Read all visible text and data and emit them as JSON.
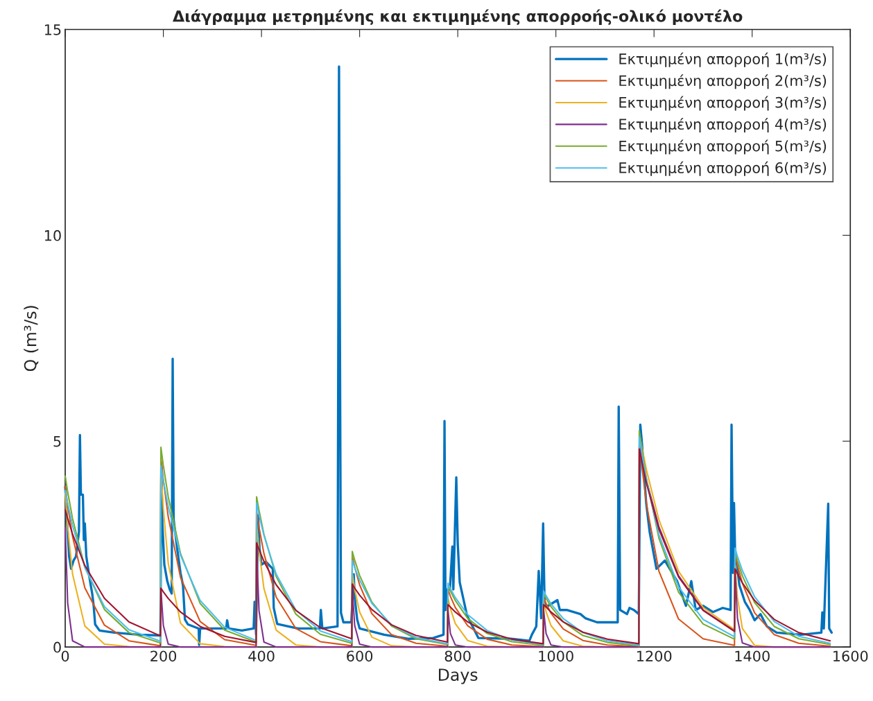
{
  "chart_data": {
    "type": "line",
    "title": "Διάγραμμα μετρημένης και εκτιμημένης απορροής-ολικό μοντέλο",
    "xlabel": "Days",
    "ylabel": "Q (m³/s)",
    "xlim": [
      0,
      1600
    ],
    "xticks": [
      0,
      200,
      400,
      600,
      800,
      1000,
      1200,
      1400,
      1600
    ],
    "ylim": [
      0,
      15
    ],
    "yticks": [
      0,
      5,
      10,
      15
    ],
    "legend": "top right",
    "x": [
      0,
      5,
      15,
      40,
      80,
      130,
      194,
      195,
      200,
      210,
      235,
      275,
      325,
      389,
      390,
      395,
      405,
      430,
      470,
      520,
      584,
      585,
      590,
      600,
      625,
      665,
      715,
      779,
      780,
      785,
      795,
      820,
      860,
      910,
      974,
      975,
      980,
      990,
      1015,
      1055,
      1105,
      1169,
      1170,
      1175,
      1185,
      1210,
      1250,
      1300,
      1364,
      1365,
      1370,
      1380,
      1405,
      1445,
      1495,
      1559
    ],
    "series": [
      {
        "name": "Εκτιμημένη απορροή 1(m³/s)",
        "color": "#0072bd",
        "x": [
          0,
          3,
          8,
          12,
          17,
          22,
          28,
          30,
          32,
          36,
          38,
          40,
          43,
          48,
          52,
          55,
          58,
          61,
          70,
          100,
          150,
          194,
          196,
          198,
          202,
          208,
          213,
          217,
          219,
          221,
          228,
          235,
          240,
          244,
          250,
          272,
          273,
          275,
          328,
          330,
          333,
          360,
          384,
          386,
          389,
          393,
          396,
          400,
          409,
          423,
          425,
          432,
          474,
          519,
          521,
          524,
          555,
          558,
          559,
          562,
          567,
          583,
          588,
          590,
          595,
          600,
          650,
          700,
          750,
          771,
          773,
          775,
          779,
          784,
          789,
          791,
          797,
          800,
          804,
          819,
          842,
          908,
          946,
          951,
          960,
          965,
          970,
          974,
          977,
          984,
          1003,
          1008,
          1022,
          1050,
          1060,
          1084,
          1126,
          1128,
          1131,
          1145,
          1150,
          1159,
          1169,
          1172,
          1175,
          1184,
          1191,
          1205,
          1222,
          1247,
          1265,
          1276,
          1285,
          1300,
          1320,
          1340,
          1356,
          1358,
          1361,
          1363,
          1365,
          1374,
          1385,
          1395,
          1405,
          1417,
          1430,
          1450,
          1500,
          1541,
          1543,
          1546,
          1555,
          1557,
          1562
        ],
        "values": [
          3.9,
          3.2,
          2.2,
          1.9,
          2.1,
          2.2,
          2.8,
          5.15,
          3.7,
          3.7,
          2.6,
          3.0,
          2.2,
          1.8,
          1.5,
          1.3,
          1.0,
          0.55,
          0.4,
          0.35,
          0.3,
          0.28,
          4.4,
          3.0,
          2.0,
          1.6,
          1.4,
          1.3,
          7.0,
          3.1,
          2.4,
          1.8,
          1.5,
          0.67,
          0.55,
          0.45,
          0.05,
          0.45,
          0.45,
          0.65,
          0.45,
          0.4,
          0.45,
          1.1,
          0.3,
          3.2,
          2.4,
          2.0,
          2.07,
          1.9,
          0.95,
          0.56,
          0.45,
          0.45,
          0.9,
          0.45,
          0.5,
          14.1,
          10.2,
          0.83,
          0.6,
          0.6,
          1.77,
          1.2,
          0.67,
          0.45,
          0.3,
          0.2,
          0.22,
          0.3,
          5.49,
          0.9,
          1.4,
          1.4,
          2.44,
          1.4,
          4.12,
          2.5,
          1.57,
          0.76,
          0.22,
          0.2,
          0.15,
          0.3,
          0.5,
          1.85,
          0.7,
          3.0,
          1.0,
          1.0,
          1.14,
          0.9,
          0.9,
          0.8,
          0.7,
          0.6,
          0.6,
          5.84,
          0.9,
          0.8,
          0.95,
          0.9,
          0.8,
          5.4,
          5.0,
          3.5,
          2.8,
          1.9,
          2.1,
          1.6,
          1.0,
          1.6,
          0.9,
          1.0,
          0.85,
          0.95,
          0.9,
          5.4,
          1.8,
          3.5,
          2.4,
          1.5,
          1.1,
          0.9,
          0.65,
          0.8,
          0.5,
          0.35,
          0.3,
          0.35,
          0.84,
          0.45,
          3.48,
          0.45,
          0.35
        ]
      },
      {
        "name": "Εκτιμημένη απορροή 2(m³/s)",
        "color": "#d95319",
        "values": [
          3.9,
          3.44,
          2.68,
          1.44,
          0.53,
          0.15,
          0.03,
          4.6,
          4.06,
          3.16,
          1.69,
          0.62,
          0.18,
          0.04,
          3.3,
          2.91,
          2.27,
          1.21,
          0.45,
          0.13,
          0.03,
          2.2,
          1.94,
          1.51,
          0.81,
          0.3,
          0.09,
          0.02,
          1.4,
          1.23,
          0.96,
          0.52,
          0.19,
          0.05,
          0.01,
          1.2,
          1.06,
          0.82,
          0.44,
          0.16,
          0.05,
          0.01,
          5.0,
          4.41,
          3.44,
          1.84,
          0.68,
          0.2,
          0.04,
          2.25,
          1.98,
          1.55,
          0.83,
          0.3,
          0.09,
          0.02
        ]
      },
      {
        "name": "Εκτιμημένη απορροή 3(m³/s)",
        "color": "#edb120",
        "values": [
          3.75,
          2.92,
          1.77,
          0.51,
          0.07,
          0.01,
          0,
          4.3,
          3.35,
          2.03,
          0.58,
          0.08,
          0.01,
          0,
          3.0,
          2.34,
          1.42,
          0.41,
          0.05,
          0,
          0,
          1.8,
          1.4,
          0.85,
          0.24,
          0.03,
          0,
          0,
          1.2,
          0.93,
          0.57,
          0.16,
          0.02,
          0,
          0,
          1.1,
          0.86,
          0.52,
          0.15,
          0.02,
          0,
          0,
          5.2,
          4.87,
          4.28,
          3.09,
          1.84,
          0.96,
          0.42,
          2.0,
          1.21,
          0.45,
          0.04,
          0,
          0,
          0
        ]
      },
      {
        "name": "Εκτιμημένη απορροή 4(m³/s)",
        "color": "#7e2f8e",
        "values": [
          2.9,
          1.07,
          0.15,
          0,
          0,
          0,
          0,
          1.4,
          0.52,
          0.07,
          0,
          0,
          0,
          0,
          2.4,
          0.88,
          0.12,
          0,
          0,
          0,
          0,
          1.4,
          0.52,
          0.07,
          0,
          0,
          0,
          0,
          0.9,
          0.33,
          0.05,
          0,
          0,
          0,
          0,
          0.9,
          0.33,
          0.05,
          0,
          0,
          0,
          0,
          4.9,
          4.59,
          4.03,
          2.92,
          1.73,
          0.9,
          0.39,
          1.9,
          0.7,
          0.1,
          0,
          0,
          0,
          0
        ]
      },
      {
        "name": "Εκτιμημένη απορροή 5(m³/s)",
        "color": "#77ac30",
        "values": [
          4.15,
          3.77,
          3.12,
          1.94,
          0.91,
          0.35,
          0.1,
          4.85,
          4.41,
          3.65,
          2.27,
          1.06,
          0.41,
          0.12,
          3.65,
          3.32,
          2.74,
          1.71,
          0.8,
          0.31,
          0.09,
          2.32,
          2.11,
          1.74,
          1.09,
          0.51,
          0.2,
          0.06,
          1.5,
          1.36,
          1.13,
          0.7,
          0.33,
          0.13,
          0.04,
          1.3,
          1.18,
          0.98,
          0.61,
          0.28,
          0.11,
          0.03,
          5.25,
          4.82,
          4.06,
          2.64,
          1.33,
          0.56,
          0.19,
          2.3,
          2.09,
          1.73,
          1.08,
          0.5,
          0.2,
          0.06
        ]
      },
      {
        "name": "Εκτιμημένη απορροή 6(m³/s)",
        "color": "#4dbeee",
        "values": [
          3.8,
          3.49,
          2.95,
          1.93,
          0.98,
          0.42,
          0.14,
          4.4,
          4.04,
          3.41,
          2.23,
          1.13,
          0.48,
          0.16,
          3.5,
          3.21,
          2.71,
          1.77,
          0.9,
          0.39,
          0.13,
          2.1,
          1.93,
          1.63,
          1.06,
          0.54,
          0.23,
          0.08,
          1.55,
          1.42,
          1.2,
          0.79,
          0.4,
          0.17,
          0.06,
          1.36,
          1.25,
          1.05,
          0.69,
          0.35,
          0.15,
          0.05,
          5.1,
          4.72,
          4.03,
          2.73,
          1.46,
          0.67,
          0.25,
          2.4,
          2.2,
          1.86,
          1.22,
          0.62,
          0.26,
          0.09
        ]
      },
      {
        "color": "#a2142f",
        "values": [
          3.33,
          3.12,
          2.74,
          1.98,
          1.18,
          0.61,
          0.27,
          1.43,
          1.34,
          1.18,
          0.85,
          0.5,
          0.26,
          0.11,
          2.53,
          2.37,
          2.08,
          1.51,
          0.89,
          0.47,
          0.2,
          1.53,
          1.43,
          1.26,
          0.91,
          0.54,
          0.28,
          0.12,
          1.03,
          0.97,
          0.85,
          0.61,
          0.36,
          0.19,
          0.08,
          1.03,
          0.97,
          0.85,
          0.61,
          0.36,
          0.19,
          0.08,
          4.81,
          4.51,
          3.96,
          2.86,
          1.7,
          0.89,
          0.38,
          1.9,
          1.78,
          1.56,
          1.13,
          0.67,
          0.35,
          0.15
        ]
      }
    ]
  }
}
